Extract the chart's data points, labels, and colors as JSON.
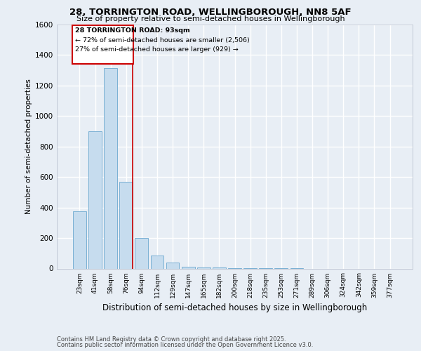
{
  "title_line1": "28, TORRINGTON ROAD, WELLINGBOROUGH, NN8 5AF",
  "title_line2": "Size of property relative to semi-detached houses in Wellingborough",
  "xlabel": "Distribution of semi-detached houses by size in Wellingborough",
  "ylabel": "Number of semi-detached properties",
  "categories": [
    "23sqm",
    "41sqm",
    "58sqm",
    "76sqm",
    "94sqm",
    "112sqm",
    "129sqm",
    "147sqm",
    "165sqm",
    "182sqm",
    "200sqm",
    "218sqm",
    "235sqm",
    "253sqm",
    "271sqm",
    "289sqm",
    "306sqm",
    "324sqm",
    "342sqm",
    "359sqm",
    "377sqm"
  ],
  "values": [
    375,
    900,
    1315,
    570,
    200,
    85,
    40,
    12,
    8,
    5,
    3,
    2,
    1,
    1,
    1,
    0,
    0,
    0,
    0,
    0,
    0
  ],
  "bar_color": "#c6dcee",
  "bar_edge_color": "#7ab0d4",
  "annotation_title": "28 TORRINGTON ROAD: 93sqm",
  "annotation_line1": "← 72% of semi-detached houses are smaller (2,506)",
  "annotation_line2": "27% of semi-detached houses are larger (929) →",
  "vline_color": "#cc0000",
  "vline_bin_index": 3,
  "ylim": [
    0,
    1600
  ],
  "yticks": [
    0,
    200,
    400,
    600,
    800,
    1000,
    1200,
    1400,
    1600
  ],
  "background_color": "#e8eef5",
  "plot_background": "#e8eef5",
  "grid_color": "#ffffff",
  "footer_line1": "Contains HM Land Registry data © Crown copyright and database right 2025.",
  "footer_line2": "Contains public sector information licensed under the Open Government Licence v3.0."
}
